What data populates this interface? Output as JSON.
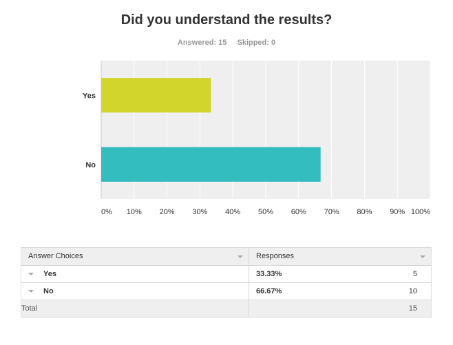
{
  "survey": {
    "question": "Did you understand the results?",
    "answered_label": "Answered: 15",
    "skipped_label": "Skipped: 0"
  },
  "colors": {
    "yes_bar": "#d1d52c",
    "no_bar": "#33bdbf",
    "plot_bg": "#efefef",
    "gridline": "#ffffff"
  },
  "chart_data": {
    "type": "bar",
    "orientation": "horizontal",
    "title": "Did you understand the results?",
    "categories": [
      "Yes",
      "No"
    ],
    "values": [
      33.33,
      66.67
    ],
    "xlim": [
      0,
      100
    ],
    "x_ticks": [
      "0%",
      "10%",
      "20%",
      "30%",
      "40%",
      "50%",
      "60%",
      "70%",
      "80%",
      "90%",
      "100%"
    ],
    "grid": true,
    "xlabel": "",
    "ylabel": ""
  },
  "table": {
    "headers": [
      "Answer Choices",
      "Responses"
    ],
    "rows": [
      {
        "choice": "Yes",
        "percent": "33.33%",
        "count": "5"
      },
      {
        "choice": "No",
        "percent": "66.67%",
        "count": "10"
      }
    ],
    "total_label": "Total",
    "total_count": "15"
  }
}
